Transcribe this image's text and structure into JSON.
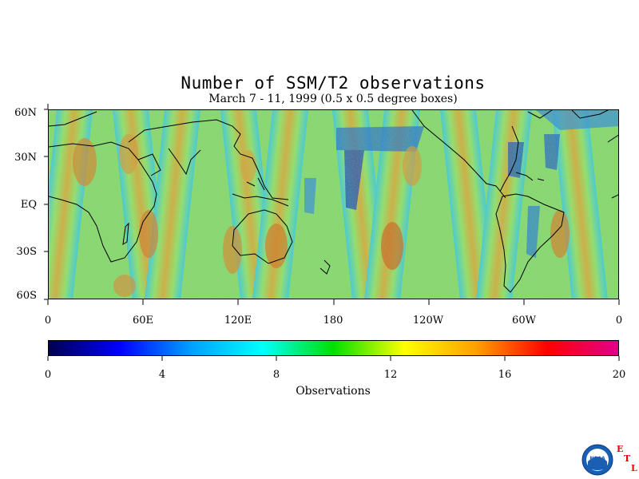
{
  "title": "Number of SSM/T2 observations",
  "subtitle": "March 7 - 11, 1999 (0.5 x 0.5 degree boxes)",
  "map": {
    "lat_labels": [
      "60N",
      "30N",
      "EQ",
      "30S",
      "60S"
    ],
    "lon_labels": [
      "0",
      "60E",
      "120E",
      "180",
      "120W",
      "60W",
      "0"
    ]
  },
  "colorbar": {
    "tick_labels": [
      "0",
      "4",
      "8",
      "12",
      "16",
      "20"
    ],
    "title": "Observations",
    "min": 0,
    "max": 20,
    "colors": [
      "#00004f",
      "#0000ff",
      "#00a0ff",
      "#00ffff",
      "#00e000",
      "#ffff00",
      "#ffa000",
      "#ff0000",
      "#e0008a"
    ]
  },
  "logo": {
    "icon": "noaa-logo-icon",
    "etl_letters": [
      "E",
      "T",
      "L"
    ]
  }
}
